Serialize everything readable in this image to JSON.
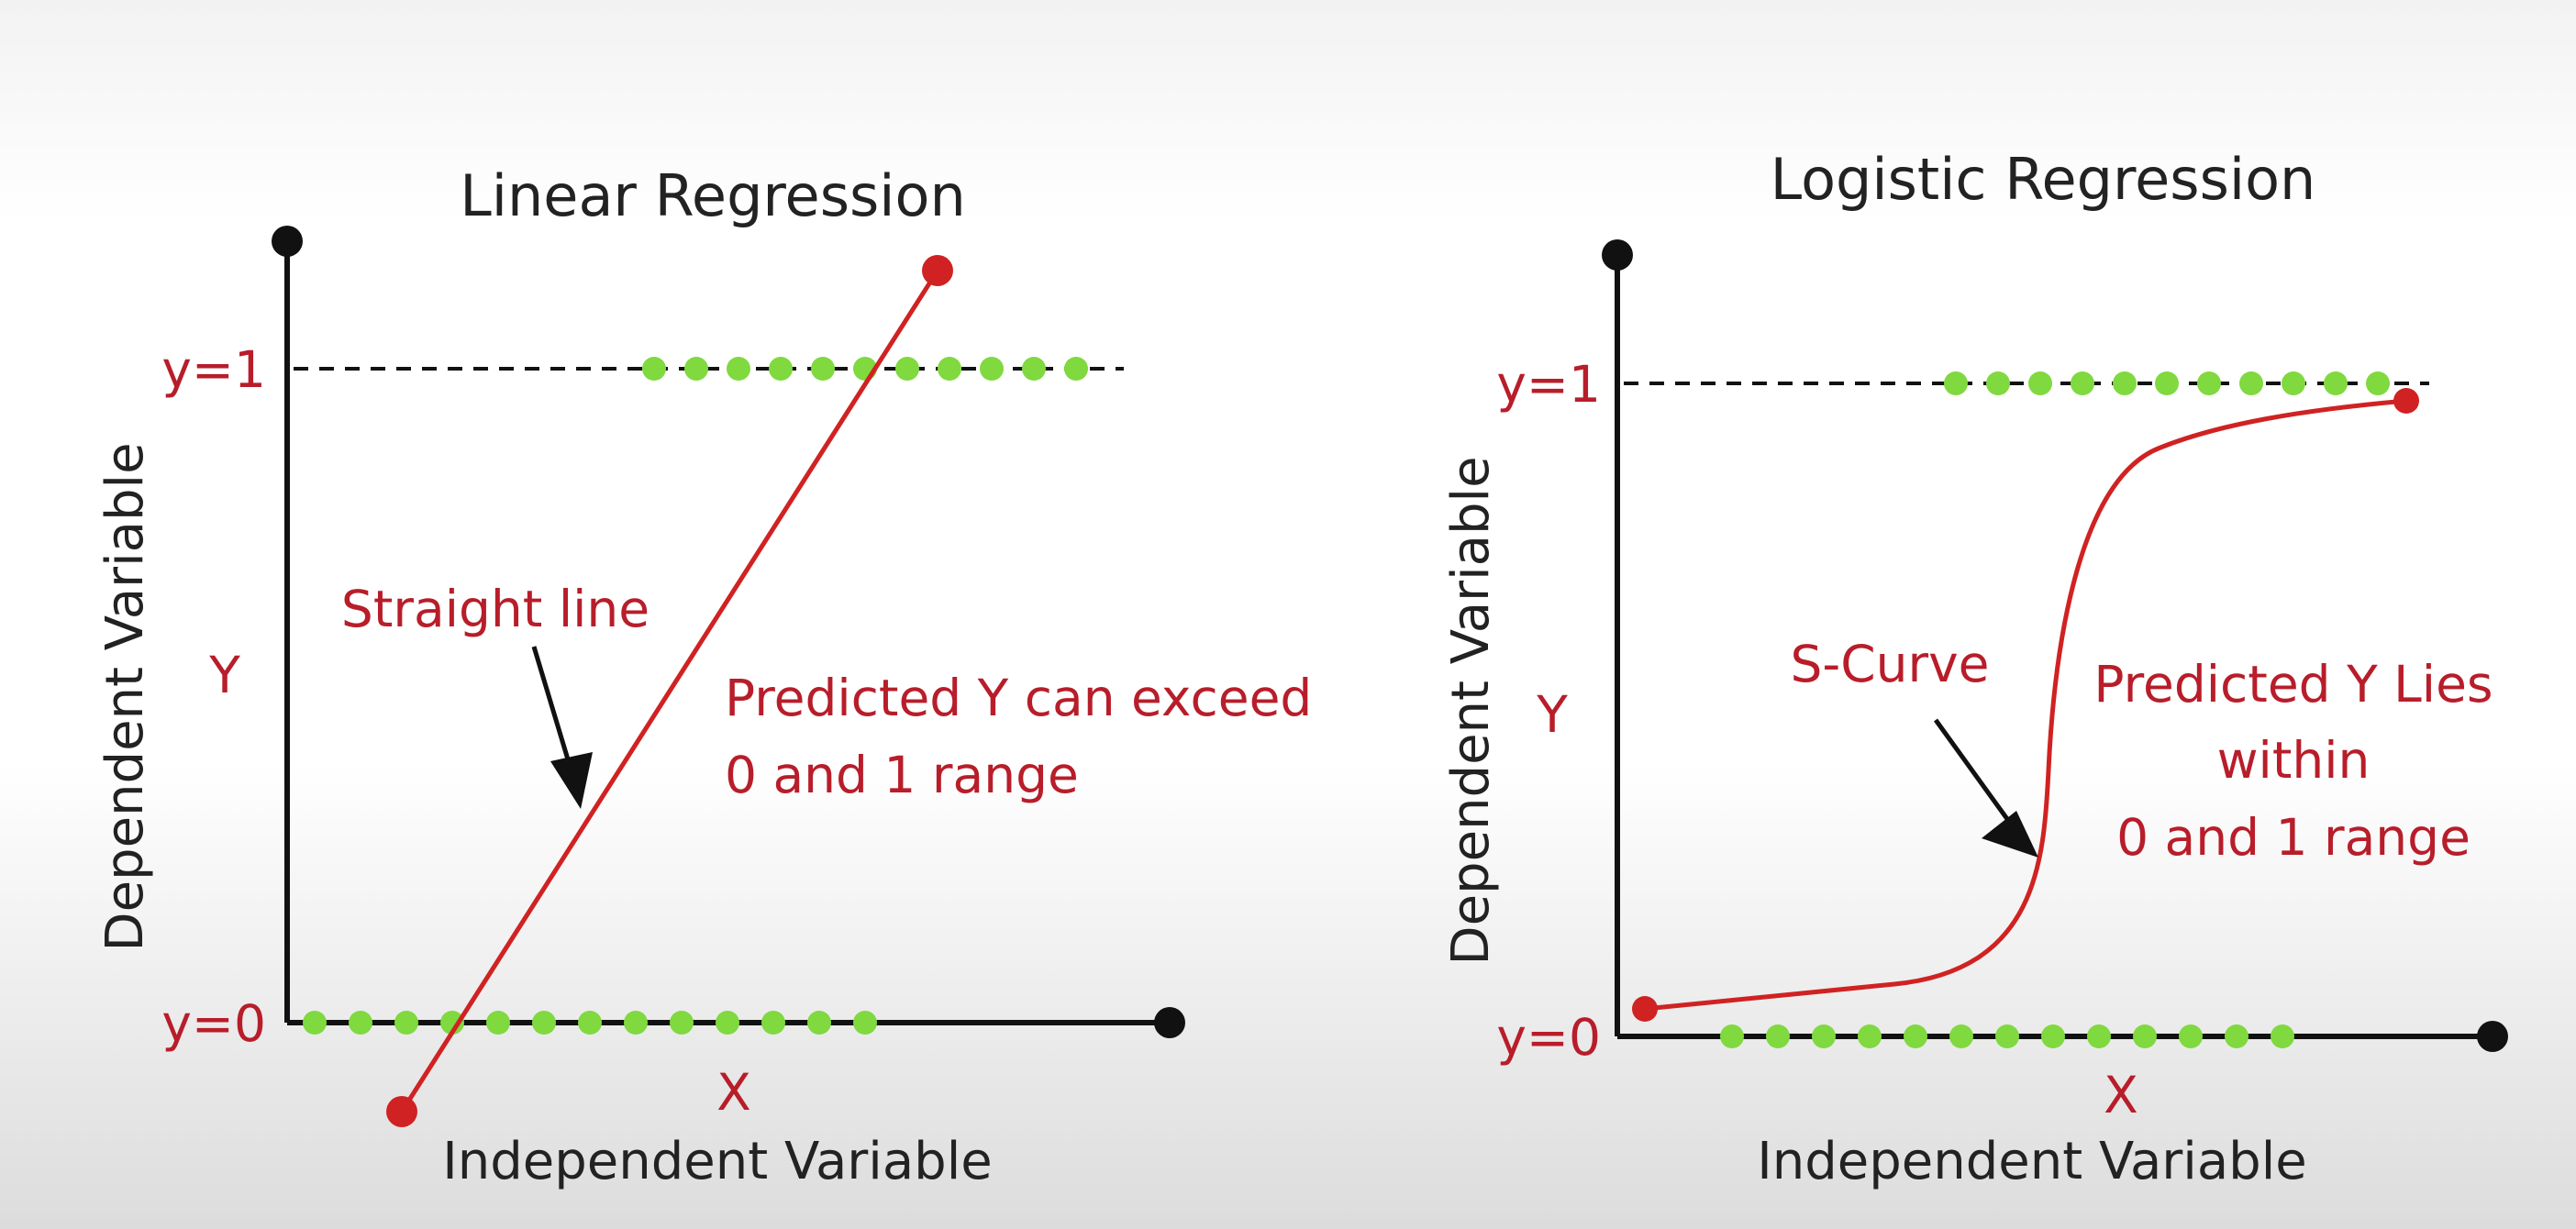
{
  "panels": [
    {
      "title": "Linear Regression",
      "y_top_label": "y=1",
      "y_bottom_label": "y=0",
      "y_axis_label": "Dependent Variable",
      "y_symbol": "Y",
      "x_symbol": "X",
      "x_axis_label": "Independent Variable",
      "curve_label": "Straight line",
      "note_lines": [
        "Predicted Y can exceed",
        "0 and 1 range"
      ],
      "curve_type": "straight line",
      "observations_y1_count": 11,
      "observations_y0_count": 13
    },
    {
      "title": "Logistic Regression",
      "y_top_label": "y=1",
      "y_bottom_label": "y=0",
      "y_axis_label": "Dependent Variable",
      "y_symbol": "Y",
      "x_symbol": "X",
      "x_axis_label": "Independent Variable",
      "curve_label": "S-Curve",
      "note_lines": [
        "Predicted Y Lies",
        "within",
        "0 and 1 range"
      ],
      "curve_type": "s-curve",
      "observations_y1_count": 11,
      "observations_y0_count": 13
    }
  ],
  "colors": {
    "observation": "#7fd93f",
    "prediction": "#d02222",
    "annotation_text": "#b81d2a",
    "axis": "#111111"
  }
}
